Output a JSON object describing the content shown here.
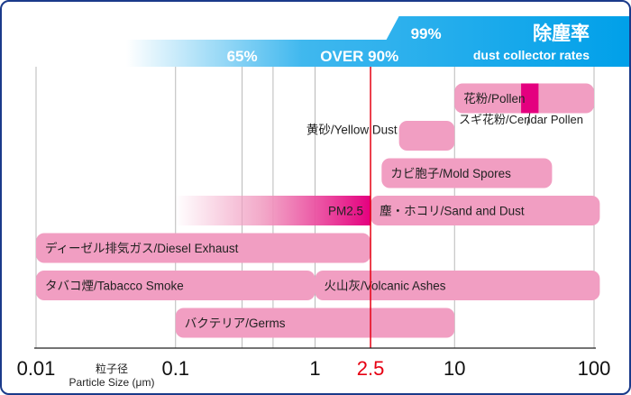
{
  "chart_data": {
    "type": "range-bar",
    "x_scale": "log",
    "xlim": [
      0.01,
      100
    ],
    "x_ticks": [
      "0.01",
      "0.1",
      "1",
      "10",
      "100"
    ],
    "x_gridlines": [
      0.01,
      0.1,
      0.3,
      0.5,
      1,
      10,
      100
    ],
    "xlabel_ja": "粒子径",
    "xlabel_en": "Particle Size (μm)",
    "highlight": {
      "value": 2.5,
      "label": "2.5",
      "color": "#e60012"
    },
    "collector_rates": {
      "title_ja": "除塵率",
      "title_en": "dust collector rates",
      "levels": [
        {
          "label": "65%",
          "from": 0.1
        },
        {
          "label": "OVER 90%",
          "from": 1.5
        },
        {
          "label": "99%",
          "from": 4.5
        }
      ],
      "band_color": "#00a0e9"
    },
    "bars": [
      {
        "label": "花粉/Pollen",
        "from": 10,
        "to": 100,
        "lane": 0,
        "mark": [
          30,
          40
        ],
        "mark_color": "#e4007f"
      },
      {
        "label": "スギ花粉/Cendar Pollen",
        "lane": 0.55,
        "callout": true
      },
      {
        "label": "黄砂/Yellow Dust",
        "from": 4,
        "to": 10,
        "lane": 1,
        "label_side": "left"
      },
      {
        "label": "カビ胞子/Mold Spores",
        "from": 3,
        "to": 50,
        "lane": 2
      },
      {
        "label": "PM2.5",
        "from": 0.1,
        "to": 2.5,
        "lane": 3,
        "gradient": true,
        "label_side": "inside-right"
      },
      {
        "label": "塵・ホコリ/Sand and Dust",
        "from": 2.5,
        "to": 110,
        "lane": 3
      },
      {
        "label": "ディーゼル排気ガス/Diesel Exhaust",
        "from": 0.01,
        "to": 2.5,
        "lane": 4
      },
      {
        "label": "タバコ煙/Tabacco Smoke",
        "from": 0.01,
        "to": 1,
        "lane": 5
      },
      {
        "label": "火山灰/Volcanic Ashes",
        "from": 1,
        "to": 110,
        "lane": 5
      },
      {
        "label": "バクテリア/Germs",
        "from": 0.1,
        "to": 10,
        "lane": 6
      }
    ],
    "bar_color": "#f19ec2",
    "gradient_color": "#e4007f"
  }
}
